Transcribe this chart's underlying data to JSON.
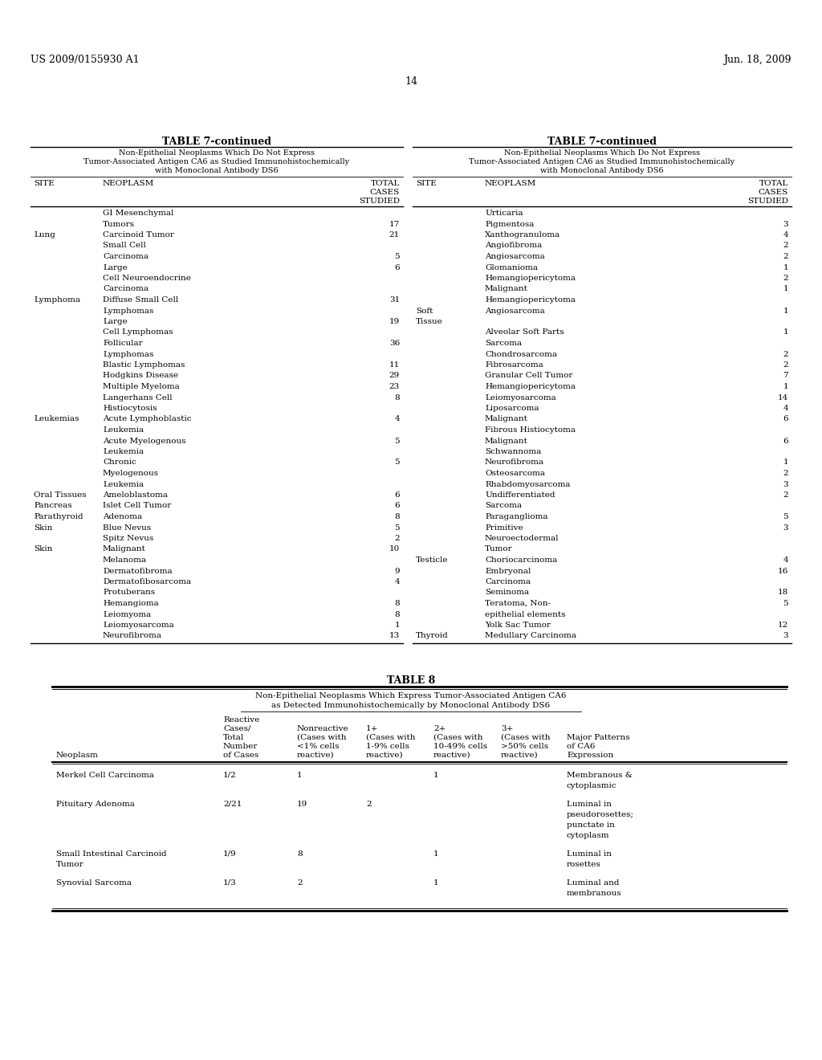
{
  "header_left": "US 2009/0155930 A1",
  "header_right": "Jun. 18, 2009",
  "page_number": "14",
  "table7_title": "TABLE 7-continued",
  "table7_subtitle_lines": [
    "Non-Epithelial Neoplasms Which Do Not Express",
    "Tumor-Associated Antigen CA6 as Studied Immunohistochemically",
    "with Monoclonal Antibody DS6"
  ],
  "table7_left": [
    [
      "",
      "GI Mesenchymal",
      ""
    ],
    [
      "",
      "Tumors",
      "17"
    ],
    [
      "Lung",
      "Carcinoid Tumor",
      "21"
    ],
    [
      "",
      "Small Cell",
      ""
    ],
    [
      "",
      "Carcinoma",
      "5"
    ],
    [
      "",
      "Large",
      "6"
    ],
    [
      "",
      "Cell Neuroendocrine",
      ""
    ],
    [
      "",
      "Carcinoma",
      ""
    ],
    [
      "Lymphoma",
      "Diffuse Small Cell",
      "31"
    ],
    [
      "",
      "Lymphomas",
      ""
    ],
    [
      "",
      "Large",
      "19"
    ],
    [
      "",
      "Cell Lymphomas",
      ""
    ],
    [
      "",
      "Follicular",
      "36"
    ],
    [
      "",
      "Lymphomas",
      ""
    ],
    [
      "",
      "Blastic Lymphomas",
      "11"
    ],
    [
      "",
      "Hodgkins Disease",
      "29"
    ],
    [
      "",
      "Multiple Myeloma",
      "23"
    ],
    [
      "",
      "Langerhans Cell",
      "8"
    ],
    [
      "",
      "Histiocytosis",
      ""
    ],
    [
      "Leukemias",
      "Acute Lymphoblastic",
      "4"
    ],
    [
      "",
      "Leukemia",
      ""
    ],
    [
      "",
      "Acute Myelogenous",
      "5"
    ],
    [
      "",
      "Leukemia",
      ""
    ],
    [
      "",
      "Chronic",
      "5"
    ],
    [
      "",
      "Myelogenous",
      ""
    ],
    [
      "",
      "Leukemia",
      ""
    ],
    [
      "Oral Tissues",
      "Ameloblastoma",
      "6"
    ],
    [
      "Pancreas",
      "Islet Cell Tumor",
      "6"
    ],
    [
      "Parathyroid",
      "Adenoma",
      "8"
    ],
    [
      "Skin",
      "Blue Nevus",
      "5"
    ],
    [
      "",
      "Spitz Nevus",
      "2"
    ],
    [
      "Skin",
      "Malignant",
      "10"
    ],
    [
      "",
      "Melanoma",
      ""
    ],
    [
      "",
      "Dermatofibroma",
      "9"
    ],
    [
      "",
      "Dermatofibosarcoma",
      "4"
    ],
    [
      "",
      "Protuberans",
      ""
    ],
    [
      "",
      "Hemangioma",
      "8"
    ],
    [
      "",
      "Leiomyoma",
      "8"
    ],
    [
      "",
      "Leiomyosarcoma",
      "1"
    ],
    [
      "",
      "Neurofibroma",
      "13"
    ]
  ],
  "table7_right": [
    [
      "",
      "Urticaria",
      ""
    ],
    [
      "",
      "Pigmentosa",
      "3"
    ],
    [
      "",
      "Xanthogranuloma",
      "4"
    ],
    [
      "",
      "Angiofibroma",
      "2"
    ],
    [
      "",
      "Angiosarcoma",
      "2"
    ],
    [
      "",
      "Glomanioma",
      "1"
    ],
    [
      "",
      "Hemangiopericytoma",
      "2"
    ],
    [
      "",
      "Malignant",
      "1"
    ],
    [
      "",
      "Hemangiopericytoma",
      ""
    ],
    [
      "Soft",
      "Angiosarcoma",
      "1"
    ],
    [
      "Tissue",
      "",
      ""
    ],
    [
      "",
      "Alveolar Soft Parts",
      "1"
    ],
    [
      "",
      "Sarcoma",
      ""
    ],
    [
      "",
      "Chondrosarcoma",
      "2"
    ],
    [
      "",
      "Fibrosarcoma",
      "2"
    ],
    [
      "",
      "Granular Cell Tumor",
      "7"
    ],
    [
      "",
      "Hemangiopericytoma",
      "1"
    ],
    [
      "",
      "Leiomyosarcoma",
      "14"
    ],
    [
      "",
      "Liposarcoma",
      "4"
    ],
    [
      "",
      "Malignant",
      "6"
    ],
    [
      "",
      "Fibrous Histiocytoma",
      ""
    ],
    [
      "",
      "Malignant",
      "6"
    ],
    [
      "",
      "Schwannoma",
      ""
    ],
    [
      "",
      "Neurofibroma",
      "1"
    ],
    [
      "",
      "Osteosarcoma",
      "2"
    ],
    [
      "",
      "Rhabdomyosarcoma",
      "3"
    ],
    [
      "",
      "Undifferentiated",
      "2"
    ],
    [
      "",
      "Sarcoma",
      ""
    ],
    [
      "",
      "Paraganglioma",
      "5"
    ],
    [
      "",
      "Primitive",
      "3"
    ],
    [
      "",
      "Neuroectodermal",
      ""
    ],
    [
      "",
      "Tumor",
      ""
    ],
    [
      "Testicle",
      "Choriocarcinoma",
      "4"
    ],
    [
      "",
      "Embryonal",
      "16"
    ],
    [
      "",
      "Carcinoma",
      ""
    ],
    [
      "",
      "Seminoma",
      "18"
    ],
    [
      "",
      "Teratoma, Non-",
      "5"
    ],
    [
      "",
      "epithelial elements",
      ""
    ],
    [
      "",
      "Yolk Sac Tumor",
      "12"
    ],
    [
      "Thyroid",
      "Medullary Carcinoma",
      "3"
    ]
  ],
  "table8_title": "TABLE 8",
  "table8_subtitle_lines": [
    "Non-Epithelial Neoplasms Which Express Tumor-Associated Antigen CA6",
    "as Detected Immunohistochemically by Monoclonal Antibody DS6"
  ],
  "table8_col_headers_line1": [
    "",
    "Reactive",
    "",
    "",
    "",
    "",
    ""
  ],
  "table8_col_headers_line2": [
    "",
    "Cases/",
    "Nonreactive",
    "1+",
    "2+",
    "3+",
    ""
  ],
  "table8_col_headers_line3": [
    "",
    "Total",
    "(Cases with",
    "(Cases with",
    "(Cases with",
    "(Cases with",
    "Major Patterns"
  ],
  "table8_col_headers_line4": [
    "",
    "Number",
    "<1% cells",
    "1-9% cells",
    "10-49% cells",
    ">50% cells",
    "of CA6"
  ],
  "table8_col_headers_line5": [
    "Neoplasm",
    "of Cases",
    "reactive)",
    "reactive)",
    "reactive)",
    "reactive)",
    "Expression"
  ],
  "table8_rows": [
    [
      "Merkel Cell Carcinoma",
      "1/2",
      "1",
      "",
      "1",
      "",
      "Membranous &",
      "cytoplasmic"
    ],
    [
      "Pituitary Adenoma",
      "2/21",
      "19",
      "2",
      "",
      "",
      "Luminal in",
      "pseudorosettes;",
      "punctate in",
      "cytoplasm"
    ],
    [
      "Small Intestinal Carcinoid",
      "1/9",
      "8",
      "",
      "1",
      "",
      "Luminal in",
      "rosettes"
    ],
    [
      "Tumor",
      "",
      "",
      "",
      "",
      "",
      "",
      ""
    ],
    [
      "Synovial Sarcoma",
      "1/3",
      "2",
      "",
      "1",
      "",
      "Luminal and",
      "membranous"
    ]
  ]
}
